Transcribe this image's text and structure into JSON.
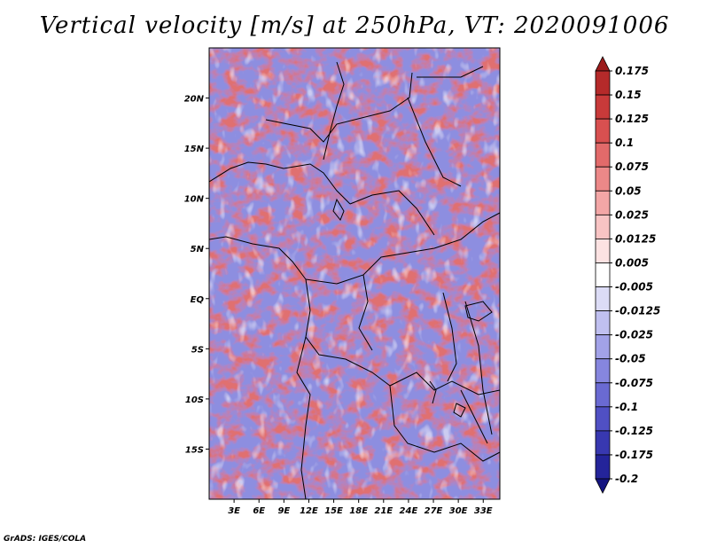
{
  "title": "Vertical velocity [m/s] at 250hPa, VT: 2020091006",
  "credit": "GrADS: IGES/COLA",
  "map": {
    "lon_range": [
      0,
      35
    ],
    "lat_range": [
      -20,
      25
    ],
    "lon_ticks": [
      "3E",
      "6E",
      "9E",
      "12E",
      "15E",
      "18E",
      "21E",
      "24E",
      "27E",
      "30E",
      "33E"
    ],
    "lat_ticks": [
      "20N",
      "15N",
      "10N",
      "5N",
      "EQ",
      "5S",
      "10S",
      "15S"
    ]
  },
  "colorbar": {
    "labels": [
      "0.175",
      "0.15",
      "0.125",
      "0.1",
      "0.075",
      "0.05",
      "0.025",
      "0.0125",
      "0.005",
      "-0.005",
      "-0.0125",
      "-0.025",
      "-0.05",
      "-0.075",
      "-0.1",
      "-0.125",
      "-0.175",
      "-0.2"
    ],
    "colors": [
      "#9c1b1b",
      "#b52a2a",
      "#c83a3a",
      "#d85050",
      "#e26a6a",
      "#ec8888",
      "#f3a6a6",
      "#f8c4c4",
      "#fce2e2",
      "#ffffff",
      "#dcdcf6",
      "#c0c0f0",
      "#a2a2e8",
      "#8686de",
      "#6a6ad2",
      "#5050c4",
      "#3838b0",
      "#24249a",
      "#141480"
    ]
  }
}
